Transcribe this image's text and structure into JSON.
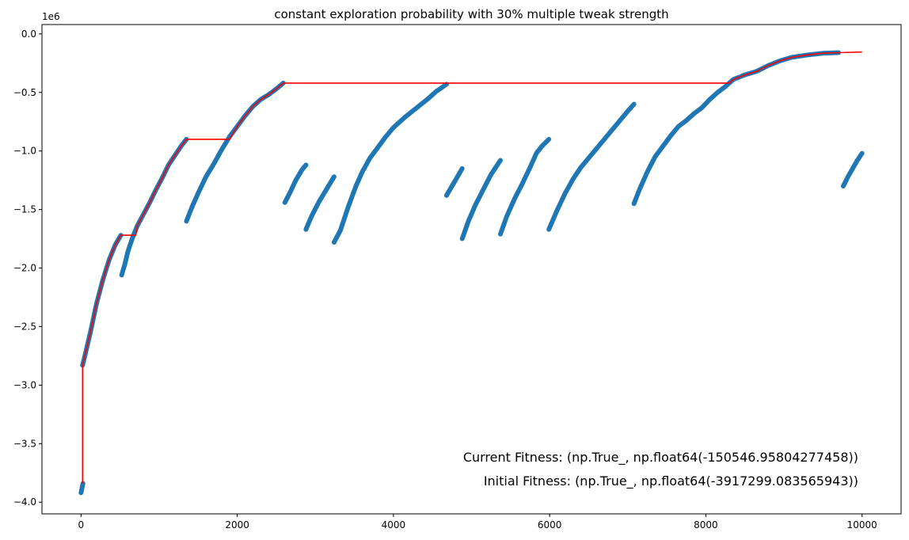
{
  "chart_data": {
    "type": "scatter",
    "title": "constant exploration probability with 30% multiple tweak strength",
    "xlabel": "",
    "ylabel": "",
    "y_offset_label": "1e6",
    "xlim": [
      -500,
      10500
    ],
    "ylim": [
      -4.1,
      0.08
    ],
    "xticks": [
      0,
      2000,
      4000,
      6000,
      8000,
      10000
    ],
    "xtick_labels": [
      "0",
      "2000",
      "4000",
      "6000",
      "8000",
      "10000"
    ],
    "yticks": [
      0.0,
      -0.5,
      -1.0,
      -1.5,
      -2.0,
      -2.5,
      -3.0,
      -3.5,
      -4.0
    ],
    "ytick_labels": [
      "0.0",
      "−0.5",
      "−1.0",
      "−1.5",
      "−2.0",
      "−2.5",
      "−3.0",
      "−3.5",
      "−4.0"
    ],
    "grid": false,
    "colors": {
      "scatter": "#1f77b4",
      "best_line": "#ff0000"
    },
    "series": [
      {
        "kind": "scatter",
        "segments": [
          [
            [
              0,
              -3.92
            ],
            [
              25,
              -3.84
            ]
          ],
          [
            [
              20,
              -2.83
            ],
            [
              60,
              -2.72
            ],
            [
              120,
              -2.55
            ],
            [
              200,
              -2.3
            ],
            [
              280,
              -2.1
            ],
            [
              360,
              -1.93
            ],
            [
              440,
              -1.8
            ],
            [
              510,
              -1.72
            ]
          ],
          [
            [
              520,
              -2.06
            ],
            [
              560,
              -1.97
            ],
            [
              600,
              -1.86
            ],
            [
              660,
              -1.74
            ],
            [
              720,
              -1.64
            ],
            [
              800,
              -1.54
            ],
            [
              880,
              -1.44
            ],
            [
              960,
              -1.33
            ],
            [
              1040,
              -1.23
            ],
            [
              1120,
              -1.12
            ],
            [
              1200,
              -1.04
            ],
            [
              1280,
              -0.96
            ],
            [
              1350,
              -0.9
            ]
          ],
          [
            [
              1350,
              -1.6
            ],
            [
              1420,
              -1.48
            ],
            [
              1500,
              -1.36
            ],
            [
              1600,
              -1.22
            ],
            [
              1700,
              -1.11
            ],
            [
              1800,
              -0.99
            ],
            [
              1900,
              -0.88
            ],
            [
              2000,
              -0.79
            ],
            [
              2100,
              -0.7
            ],
            [
              2200,
              -0.62
            ],
            [
              2300,
              -0.56
            ],
            [
              2400,
              -0.52
            ],
            [
              2500,
              -0.47
            ],
            [
              2590,
              -0.42
            ]
          ],
          [
            [
              2610,
              -1.44
            ],
            [
              2680,
              -1.35
            ],
            [
              2750,
              -1.25
            ],
            [
              2830,
              -1.16
            ],
            [
              2880,
              -1.12
            ]
          ],
          [
            [
              2880,
              -1.67
            ],
            [
              2950,
              -1.56
            ],
            [
              3050,
              -1.43
            ],
            [
              3150,
              -1.32
            ],
            [
              3240,
              -1.22
            ]
          ],
          [
            [
              3240,
              -1.78
            ],
            [
              3320,
              -1.68
            ],
            [
              3420,
              -1.48
            ],
            [
              3520,
              -1.3
            ],
            [
              3600,
              -1.18
            ],
            [
              3700,
              -1.06
            ],
            [
              3800,
              -0.97
            ],
            [
              3900,
              -0.88
            ],
            [
              4000,
              -0.8
            ],
            [
              4150,
              -0.71
            ],
            [
              4300,
              -0.63
            ],
            [
              4450,
              -0.55
            ],
            [
              4550,
              -0.49
            ],
            [
              4680,
              -0.43
            ]
          ],
          [
            [
              4680,
              -1.38
            ],
            [
              4750,
              -1.3
            ],
            [
              4820,
              -1.22
            ],
            [
              4880,
              -1.15
            ]
          ],
          [
            [
              4880,
              -1.75
            ],
            [
              4960,
              -1.6
            ],
            [
              5050,
              -1.46
            ],
            [
              5150,
              -1.33
            ],
            [
              5250,
              -1.2
            ],
            [
              5370,
              -1.08
            ]
          ],
          [
            [
              5370,
              -1.71
            ],
            [
              5450,
              -1.56
            ],
            [
              5550,
              -1.41
            ],
            [
              5650,
              -1.28
            ],
            [
              5750,
              -1.14
            ],
            [
              5830,
              -1.02
            ],
            [
              5900,
              -0.96
            ],
            [
              5990,
              -0.9
            ]
          ],
          [
            [
              5990,
              -1.67
            ],
            [
              6100,
              -1.5
            ],
            [
              6200,
              -1.36
            ],
            [
              6300,
              -1.24
            ],
            [
              6400,
              -1.14
            ],
            [
              6500,
              -1.06
            ],
            [
              6600,
              -0.98
            ],
            [
              6700,
              -0.9
            ],
            [
              6800,
              -0.82
            ],
            [
              6900,
              -0.74
            ],
            [
              7000,
              -0.66
            ],
            [
              7080,
              -0.6
            ]
          ],
          [
            [
              7080,
              -1.45
            ],
            [
              7150,
              -1.33
            ],
            [
              7250,
              -1.18
            ],
            [
              7350,
              -1.05
            ],
            [
              7450,
              -0.96
            ],
            [
              7550,
              -0.87
            ],
            [
              7650,
              -0.79
            ],
            [
              7750,
              -0.74
            ],
            [
              7850,
              -0.68
            ],
            [
              7950,
              -0.63
            ],
            [
              8050,
              -0.56
            ],
            [
              8150,
              -0.5
            ],
            [
              8250,
              -0.45
            ],
            [
              8350,
              -0.39
            ],
            [
              8500,
              -0.35
            ],
            [
              8650,
              -0.32
            ],
            [
              8800,
              -0.27
            ],
            [
              8950,
              -0.23
            ],
            [
              9100,
              -0.2
            ],
            [
              9300,
              -0.18
            ],
            [
              9500,
              -0.165
            ],
            [
              9700,
              -0.16
            ]
          ],
          [
            [
              9760,
              -1.3
            ],
            [
              9820,
              -1.22
            ],
            [
              9880,
              -1.15
            ],
            [
              9940,
              -1.08
            ],
            [
              10000,
              -1.02
            ]
          ]
        ]
      },
      {
        "kind": "line",
        "points": [
          [
            20,
            -3.84
          ],
          [
            20,
            -2.83
          ],
          [
            60,
            -2.72
          ],
          [
            120,
            -2.55
          ],
          [
            200,
            -2.3
          ],
          [
            280,
            -2.1
          ],
          [
            360,
            -1.93
          ],
          [
            440,
            -1.8
          ],
          [
            510,
            -1.72
          ],
          [
            700,
            -1.72
          ],
          [
            720,
            -1.64
          ],
          [
            800,
            -1.54
          ],
          [
            880,
            -1.44
          ],
          [
            960,
            -1.33
          ],
          [
            1040,
            -1.23
          ],
          [
            1120,
            -1.12
          ],
          [
            1200,
            -1.04
          ],
          [
            1280,
            -0.96
          ],
          [
            1350,
            -0.9
          ],
          [
            1900,
            -0.9
          ],
          [
            2000,
            -0.79
          ],
          [
            2100,
            -0.7
          ],
          [
            2200,
            -0.62
          ],
          [
            2300,
            -0.56
          ],
          [
            2400,
            -0.52
          ],
          [
            2500,
            -0.47
          ],
          [
            2590,
            -0.42
          ],
          [
            8300,
            -0.42
          ],
          [
            8350,
            -0.39
          ],
          [
            8500,
            -0.35
          ],
          [
            8650,
            -0.32
          ],
          [
            8800,
            -0.27
          ],
          [
            8950,
            -0.23
          ],
          [
            9100,
            -0.2
          ],
          [
            9300,
            -0.18
          ],
          [
            9500,
            -0.165
          ],
          [
            9700,
            -0.16
          ],
          [
            10000,
            -0.155
          ]
        ]
      }
    ],
    "annotations": [
      "Current Fitness: (np.True_, np.float64(-150546.95804277458))",
      "Initial Fitness: (np.True_, np.float64(-3917299.083565943))"
    ]
  }
}
